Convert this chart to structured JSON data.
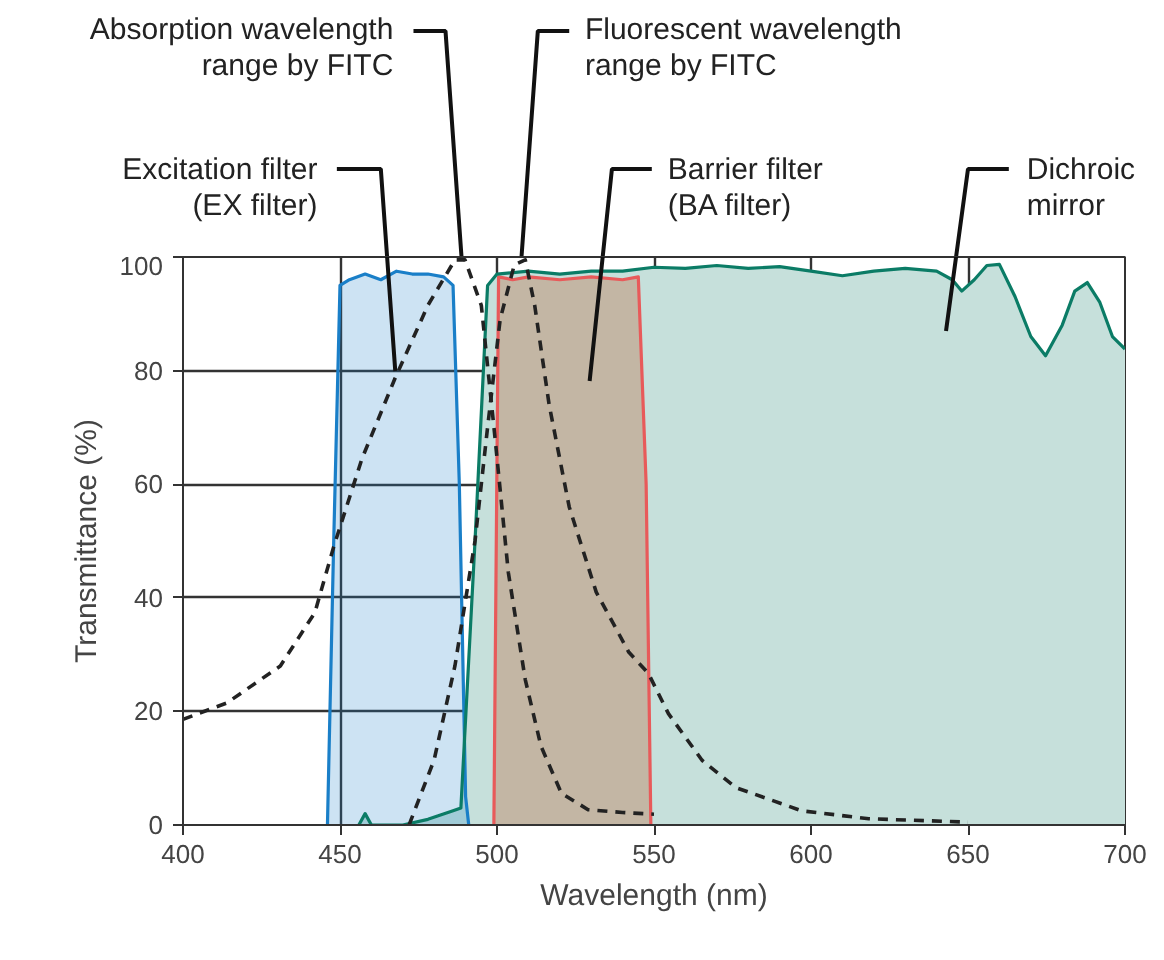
{
  "chart_data": {
    "type": "area",
    "xlabel": "Wavelength (nm)",
    "ylabel": "Transmittance (%)",
    "xlim": [
      400,
      700
    ],
    "ylim": [
      0,
      100
    ],
    "xticks": [
      400,
      450,
      500,
      550,
      600,
      650,
      700
    ],
    "yticks": [
      0,
      20,
      40,
      60,
      80,
      100
    ],
    "grid": true,
    "series": [
      {
        "name": "Dichroic\nmirror",
        "color": "#0b7c66",
        "x": [
          456,
          458,
          460,
          470,
          478,
          486,
          488.5,
          493,
          497,
          500,
          510,
          520,
          530,
          540,
          550,
          560,
          570,
          580,
          590,
          600,
          610,
          620,
          630,
          640,
          645,
          648,
          652,
          656,
          660,
          665,
          670,
          674.7,
          680,
          684,
          688,
          692,
          696,
          700
        ],
        "values": [
          0,
          2,
          0,
          0,
          1,
          2.5,
          3,
          50,
          95,
          97,
          97.5,
          97,
          97.5,
          97.5,
          98.2,
          98,
          98.5,
          98,
          98.3,
          97.5,
          96.7,
          97.5,
          98,
          97.5,
          96,
          94,
          96,
          98.5,
          98.7,
          93,
          86,
          82.6,
          88,
          94,
          95.5,
          92,
          86,
          83.8
        ]
      },
      {
        "name": "Excitation filter\n(EX filter)",
        "color": "#1a7fc8",
        "x": [
          446,
          448,
          450,
          453,
          458,
          463,
          468,
          473,
          478,
          483,
          486,
          488,
          490,
          491
        ],
        "values": [
          0,
          50,
          95,
          96,
          97,
          96,
          97.5,
          97,
          97,
          96.5,
          95,
          60,
          5,
          0
        ]
      },
      {
        "name": "Barrier filter\n(BA filter)",
        "color": "#e85a5a",
        "x": [
          499,
          500.5,
          505,
          510,
          520,
          530,
          540,
          545,
          547.5,
          549
        ],
        "values": [
          0,
          96.5,
          96,
          96.5,
          96,
          96.5,
          96,
          96.5,
          60,
          0
        ]
      },
      {
        "name": "Absorption wavelength\nrange by FITC",
        "type": "line",
        "line_style": "dashed",
        "color": "#222222",
        "x": [
          400,
          414,
          431,
          442,
          448,
          457,
          467.5,
          478,
          486.6,
          489.8,
          495,
          499.4,
          503.6,
          509,
          514,
          520.5,
          529,
          540,
          550
        ],
        "values": [
          18.6,
          21.5,
          28,
          37.4,
          49,
          64.5,
          78.6,
          91.5,
          99.5,
          99.5,
          91.5,
          68,
          44.5,
          25.6,
          13.9,
          5.6,
          2.7,
          2.2,
          1.9
        ]
      },
      {
        "name": "Fluorescent wavelength\nrange by FITC",
        "type": "line",
        "line_style": "dashed",
        "color": "#222222",
        "x": [
          472,
          480,
          486.6,
          493,
          497,
          501,
          505.5,
          509,
          512,
          516.6,
          523,
          531.6,
          542,
          548.2,
          554.6,
          565.3,
          576,
          597,
          618.4,
          650
        ],
        "values": [
          0,
          11.5,
          28,
          50,
          70,
          89,
          98.6,
          99.5,
          91.5,
          74,
          56,
          41,
          30.4,
          26.7,
          19.6,
          11.4,
          6.6,
          2.5,
          1.1,
          0.5
        ]
      }
    ]
  }
}
